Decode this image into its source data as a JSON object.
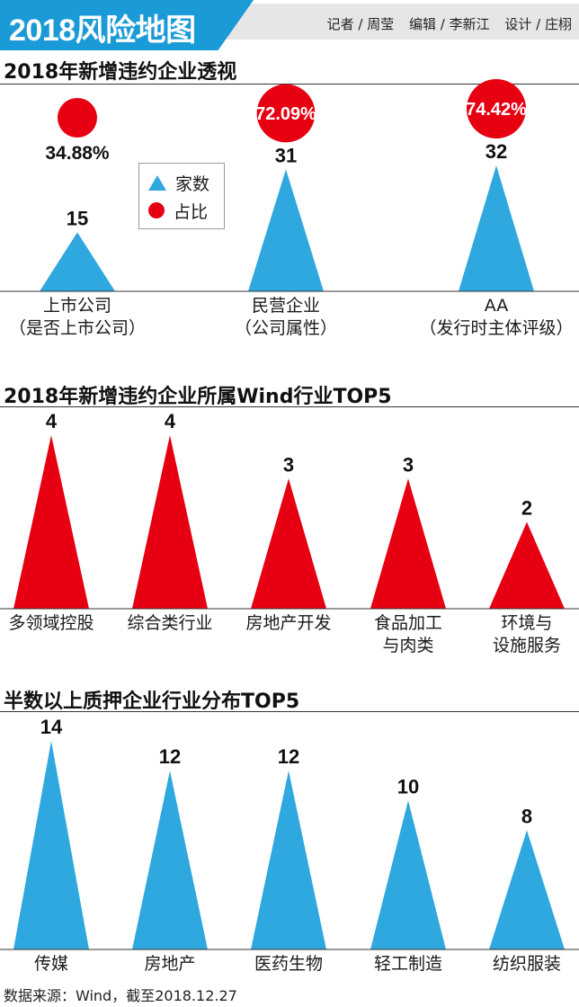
{
  "header": {
    "title": "2018风险地图",
    "reporter": "记者 / 周莹",
    "editor": "编辑 / 李新江",
    "designer": "设计 / 庄栩"
  },
  "legend": {
    "count_label": "家数",
    "share_label": "占比"
  },
  "source": "数据来源：Wind，截至2018.12.27",
  "colors": {
    "blue": "#2ea8df",
    "red": "#e60012",
    "header": "#1a9ad6"
  },
  "chart_data": [
    {
      "type": "bar",
      "title": "2018年新增违约企业透视",
      "categories": [
        [
          "上市公司",
          "（是否上市公司）"
        ],
        [
          "民营企业",
          "（公司属性）"
        ],
        [
          "AA",
          "（发行时主体评级）"
        ]
      ],
      "series": [
        {
          "name": "家数",
          "values": [
            15,
            31,
            32
          ],
          "labels": [
            "15",
            "31",
            "32"
          ]
        },
        {
          "name": "占比",
          "values": [
            34.88,
            72.09,
            74.42
          ],
          "labels": [
            "34.88%",
            "72.09%",
            "74.42%"
          ]
        }
      ],
      "color": "#2ea8df"
    },
    {
      "type": "bar",
      "title": "2018年新增违约企业所属Wind行业TOP5",
      "categories": [
        [
          "多领域控股"
        ],
        [
          "综合类行业"
        ],
        [
          "房地产开发"
        ],
        [
          "食品加工",
          "与肉类"
        ],
        [
          "环境与",
          "设施服务"
        ]
      ],
      "values": [
        4,
        4,
        3,
        3,
        2
      ],
      "labels": [
        "4",
        "4",
        "3",
        "3",
        "2"
      ],
      "color": "#e60012"
    },
    {
      "type": "bar",
      "title": "半数以上质押企业行业分布TOP5",
      "categories": [
        [
          "传媒"
        ],
        [
          "房地产"
        ],
        [
          "医药生物"
        ],
        [
          "轻工制造"
        ],
        [
          "纺织服装"
        ]
      ],
      "values": [
        14,
        12,
        12,
        10,
        8
      ],
      "labels": [
        "14",
        "12",
        "12",
        "10",
        "8"
      ],
      "color": "#2ea8df"
    }
  ]
}
